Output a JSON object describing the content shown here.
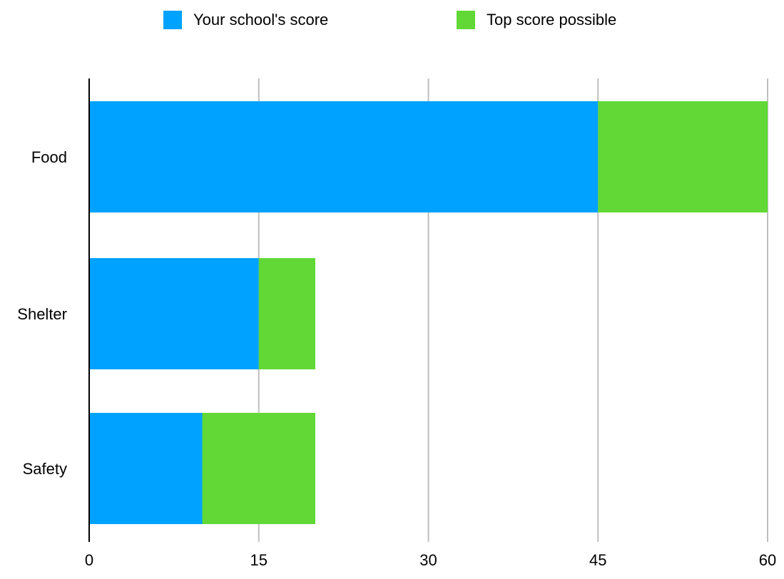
{
  "chart_data": {
    "type": "bar",
    "orientation": "horizontal",
    "stacked": true,
    "categories": [
      "Food",
      "Shelter",
      "Safety"
    ],
    "series": [
      {
        "name": "Your school's score",
        "values": [
          45,
          15,
          10
        ],
        "color": "#00A2FF"
      },
      {
        "name": "Top score possible",
        "values": [
          15,
          5,
          10
        ],
        "color": "#61D836"
      }
    ],
    "xlim": [
      0,
      60
    ],
    "xticks": [
      0,
      15,
      30,
      45,
      60
    ],
    "grid": true,
    "legend_position": "top"
  },
  "legend": {
    "series_0": "Your school's score",
    "series_1": "Top score possible"
  },
  "colors": {
    "your_score": "#00A2FF",
    "top_score": "#61D836",
    "grid": "#BFBFBF",
    "axis": "#000000"
  }
}
